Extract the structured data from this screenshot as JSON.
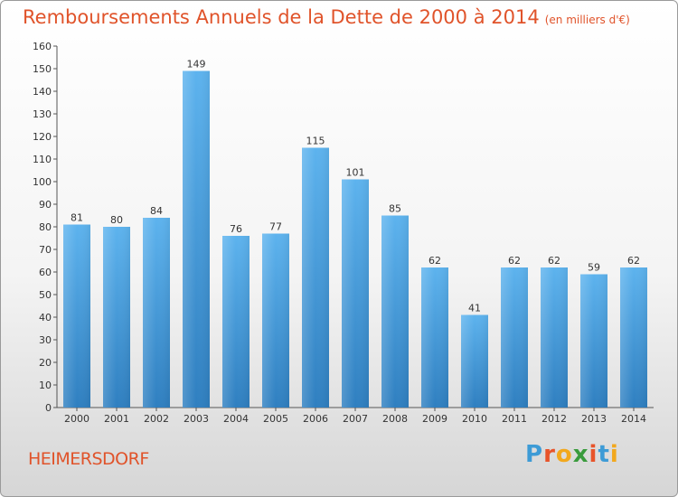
{
  "title": "Remboursements Annuels de la Dette de 2000 à 2014",
  "title_unit": "(en milliers d'€)",
  "commune": "HEIMERSDORF",
  "logo": {
    "letters": [
      "P",
      "r",
      "o",
      "x",
      "i",
      "t",
      "i"
    ],
    "colors": [
      "#3d9bd6",
      "#e8542a",
      "#f2a81d",
      "#3a9b3d",
      "#e8542a",
      "#3d9bd6",
      "#f2a81d"
    ]
  },
  "chart_data": {
    "type": "bar",
    "title": "Remboursements Annuels de la Dette de 2000 à 2014",
    "categories": [
      "2000",
      "2001",
      "2002",
      "2003",
      "2004",
      "2005",
      "2006",
      "2007",
      "2008",
      "2009",
      "2010",
      "2011",
      "2012",
      "2013",
      "2014"
    ],
    "values": [
      81,
      80,
      84,
      149,
      76,
      77,
      115,
      101,
      85,
      62,
      41,
      62,
      62,
      59,
      62
    ],
    "ylim": [
      0,
      160
    ],
    "yticks": [
      0,
      10,
      20,
      30,
      40,
      50,
      60,
      70,
      80,
      90,
      100,
      110,
      120,
      130,
      140,
      150,
      160
    ],
    "grid": false,
    "bar_color": "#4aa3e6"
  }
}
